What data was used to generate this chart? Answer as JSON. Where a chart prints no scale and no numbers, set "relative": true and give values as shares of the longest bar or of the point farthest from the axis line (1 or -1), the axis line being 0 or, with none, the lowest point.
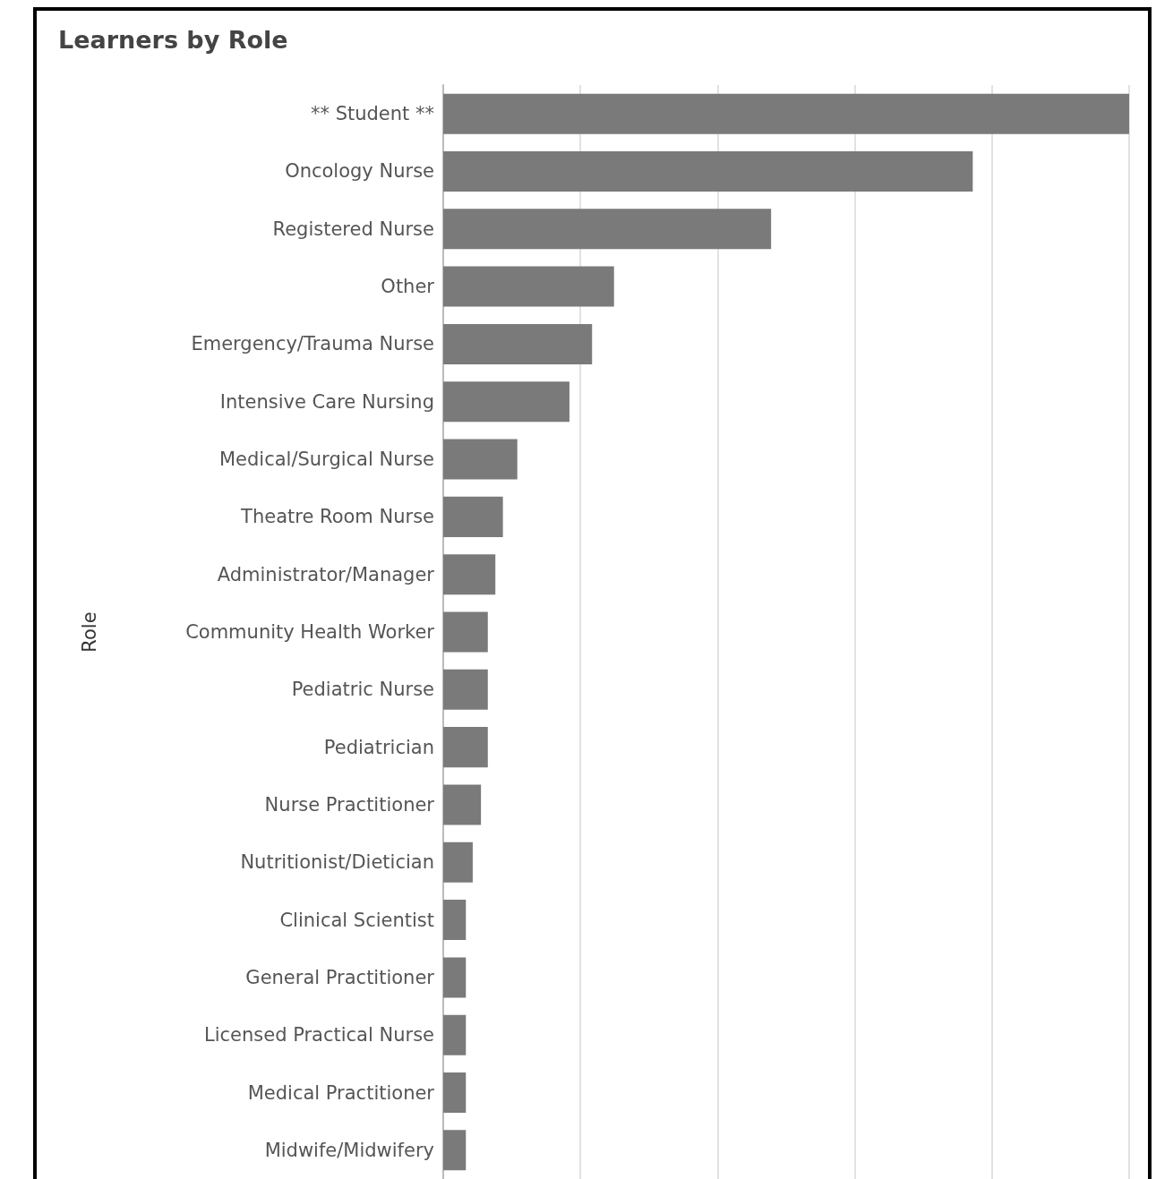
{
  "chart_data": {
    "type": "bar",
    "orientation": "horizontal",
    "relative": true,
    "title": "Learners by Role",
    "ylabel": "Role",
    "categories": [
      "** Student **",
      "Oncology Nurse",
      "Registered Nurse",
      "Other",
      "Emergency/Trauma Nurse",
      "Intensive Care Nursing",
      "Medical/Surgical Nurse",
      "Theatre Room Nurse",
      "Administrator/Manager",
      "Community Health Worker",
      "Pediatric Nurse",
      "Pediatrician",
      "Nurse Practitioner",
      "Nutritionist/Dietician",
      "Clinical Scientist",
      "General Practitioner",
      "Licensed Practical Nurse",
      "Medical Practitioner",
      "Midwife/Midwifery"
    ],
    "values": [
      1,
      0.772,
      0.478,
      0.249,
      0.217,
      0.184,
      0.108,
      0.087,
      0.076,
      0.065,
      0.065,
      0.065,
      0.055,
      0.043,
      0.033,
      0.033,
      0.033,
      0.033,
      0.033
    ],
    "color": "#7a7a7a",
    "grid": "x"
  }
}
